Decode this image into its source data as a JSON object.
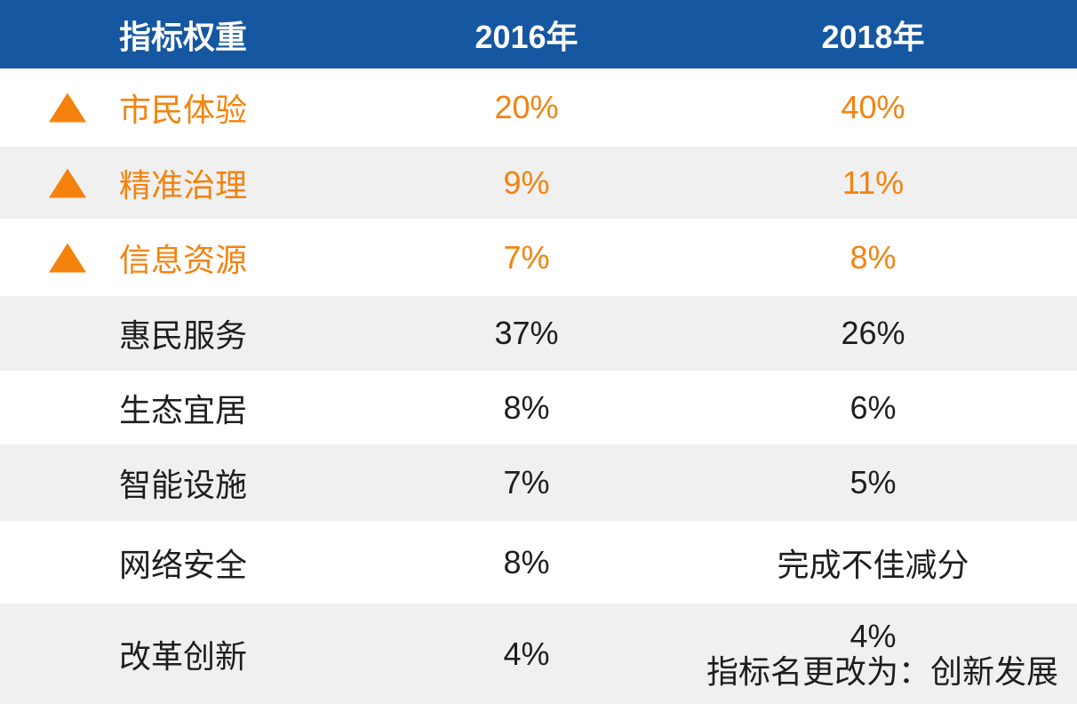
{
  "colors": {
    "header-bg": "#1557A0",
    "accent-orange": "#F5820D",
    "row-alt-bg": "#F0F0F0",
    "text-dark": "#1E1E1E",
    "header-text": "#FFFFFF"
  },
  "chart_data": {
    "type": "table",
    "columns": [
      "指标权重",
      "2016年",
      "2018年"
    ],
    "rows": [
      {
        "indicator": "市民体验",
        "w2016": "20%",
        "w2018": "40%",
        "trend": "up",
        "highlighted": true
      },
      {
        "indicator": "精准治理",
        "w2016": "9%",
        "w2018": "11%",
        "trend": "up",
        "highlighted": true
      },
      {
        "indicator": "信息资源",
        "w2016": "7%",
        "w2018": "8%",
        "trend": "up",
        "highlighted": true
      },
      {
        "indicator": "惠民服务",
        "w2016": "37%",
        "w2018": "26%",
        "highlighted": false
      },
      {
        "indicator": "生态宜居",
        "w2016": "8%",
        "w2018": "6%",
        "highlighted": false
      },
      {
        "indicator": "智能设施",
        "w2016": "7%",
        "w2018": "5%",
        "highlighted": false
      },
      {
        "indicator": "网络安全",
        "w2016": "8%",
        "w2018": "完成不佳减分",
        "highlighted": false
      },
      {
        "indicator": "改革创新",
        "w2016": "4%",
        "w2018": "4%",
        "note": "指标名更改为：创新发展",
        "highlighted": false
      }
    ],
    "layout": {
      "zebra_stripes": true,
      "header_style": "solid blue bar, white bold text",
      "highlight_marker": "orange upward triangle on increased-weight rows"
    }
  }
}
